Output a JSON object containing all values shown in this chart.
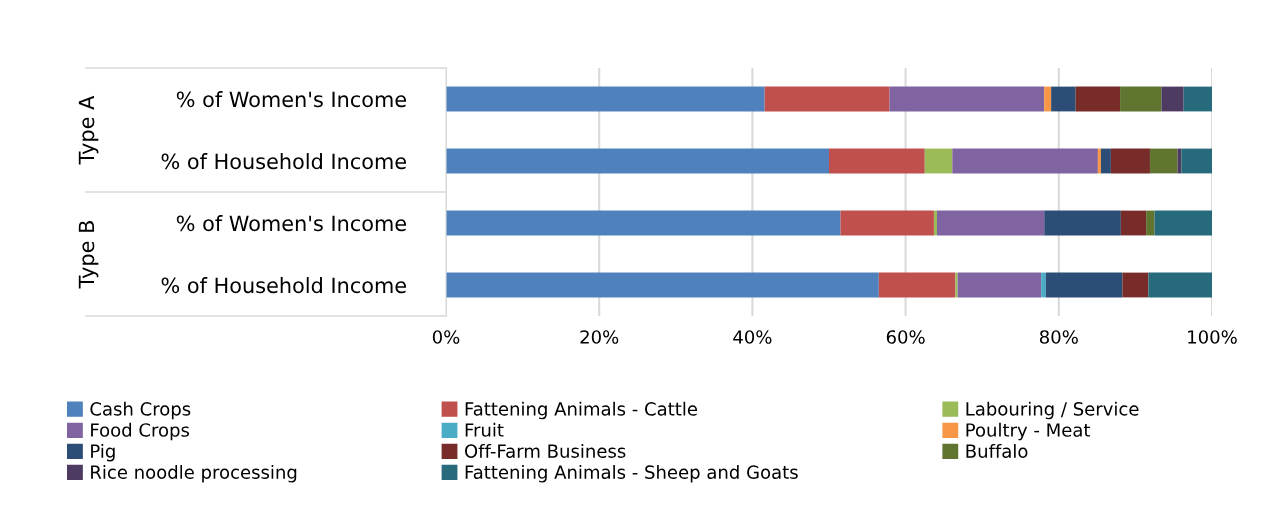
{
  "chart_data": {
    "type": "bar",
    "orientation": "horizontal",
    "stacked": true,
    "categories": [
      "% of Women's Income",
      "% of Household Income",
      "% of Women's Income",
      "% of Household Income"
    ],
    "annotations": [
      "Type A",
      "Type B"
    ],
    "series": [
      {
        "name": "Cash Crops",
        "color": "#4f81bd",
        "values": [
          41.6,
          50.0,
          51.5,
          56.5
        ]
      },
      {
        "name": "Fattening Animals - Cattle",
        "color": "#c0504d",
        "values": [
          16.3,
          12.5,
          12.2,
          10.0
        ]
      },
      {
        "name": "Labouring / Service",
        "color": "#9bbb59",
        "values": [
          0,
          3.6,
          0.4,
          0.3
        ]
      },
      {
        "name": "Food Crops",
        "color": "#8064a2",
        "values": [
          20.2,
          19.0,
          14.0,
          10.9
        ]
      },
      {
        "name": "Fruit",
        "color": "#4bacc6",
        "values": [
          0,
          0,
          0,
          0.6
        ]
      },
      {
        "name": "Poultry - Meat",
        "color": "#f79646",
        "values": [
          0.9,
          0.4,
          0,
          0
        ]
      },
      {
        "name": "Pig",
        "color": "#2c4d75",
        "values": [
          3.2,
          1.3,
          10.0,
          10.0
        ]
      },
      {
        "name": "Off-Farm Business",
        "color": "#772c2a",
        "values": [
          5.8,
          5.1,
          3.3,
          3.4
        ]
      },
      {
        "name": "Buffalo",
        "color": "#5f7530",
        "values": [
          5.4,
          3.6,
          1.1,
          0
        ]
      },
      {
        "name": "Rice noodle processing",
        "color": "#4d3b62",
        "values": [
          2.9,
          0.5,
          0,
          0
        ]
      },
      {
        "name": "Fattening Animals - Sheep and Goats",
        "color": "#276a7c",
        "values": [
          3.7,
          4.0,
          7.5,
          8.3
        ]
      }
    ],
    "xlim": [
      0,
      100
    ],
    "xticks": [
      {
        "value": 0,
        "label": "0%"
      },
      {
        "value": 20,
        "label": "20%"
      },
      {
        "value": 40,
        "label": "40%"
      },
      {
        "value": 60,
        "label": "60%"
      },
      {
        "value": 80,
        "label": "80%"
      },
      {
        "value": 100,
        "label": "100%"
      }
    ],
    "grid": "x",
    "legend": "bottom"
  }
}
